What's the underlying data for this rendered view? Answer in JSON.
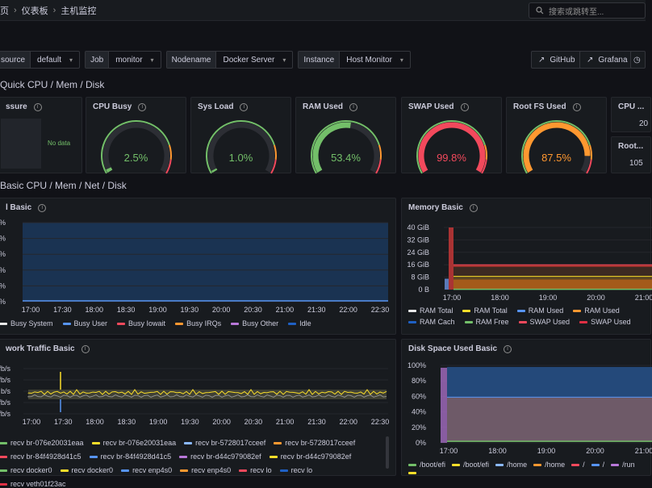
{
  "breadcrumb": {
    "home": "页",
    "dashboards": "仪表板",
    "current": "主机监控"
  },
  "search": {
    "placeholder": "搜索或跳转至..."
  },
  "filters": [
    {
      "label": "source",
      "value": "default"
    },
    {
      "label": "Job",
      "value": "monitor"
    },
    {
      "label": "Nodename",
      "value": "Docker Server"
    },
    {
      "label": "Instance",
      "value": "Host Monitor"
    }
  ],
  "links": {
    "github": "GitHub",
    "grafana": "Grafana"
  },
  "rows": {
    "quick": "Quick CPU / Mem / Disk",
    "basic": "Basic CPU / Mem / Net / Disk"
  },
  "quick_panels": {
    "pressure": {
      "title": "ssure",
      "nodata": "No data"
    },
    "gauges": [
      {
        "title": "CPU Busy",
        "value": "2.5%",
        "fraction": 0.025,
        "color": "#73bf69"
      },
      {
        "title": "Sys Load",
        "value": "1.0%",
        "fraction": 0.01,
        "color": "#73bf69"
      },
      {
        "title": "RAM Used",
        "value": "53.4%",
        "fraction": 0.534,
        "color": "#73bf69"
      },
      {
        "title": "SWAP Used",
        "value": "99.8%",
        "fraction": 0.998,
        "color": "#f2495c"
      },
      {
        "title": "Root FS Used",
        "value": "87.5%",
        "fraction": 0.875,
        "color": "#ff9830"
      }
    ],
    "stats": [
      {
        "title": "CPU ...",
        "value": "20"
      },
      {
        "title": "Root...",
        "value": "105"
      }
    ]
  },
  "cpu_panel": {
    "title": "l Basic",
    "y_ticks": [
      "%",
      "%",
      "%",
      "%",
      "%",
      "%"
    ],
    "x_ticks": [
      "17:00",
      "17:30",
      "18:00",
      "18:30",
      "19:00",
      "19:30",
      "20:00",
      "20:30",
      "21:00",
      "21:30",
      "22:00",
      "22:30"
    ],
    "legend": [
      {
        "name": "Busy System",
        "color": "#e8e8e8"
      },
      {
        "name": "Busy User",
        "color": "#5794f2"
      },
      {
        "name": "Busy Iowait",
        "color": "#f2495c"
      },
      {
        "name": "Busy IRQs",
        "color": "#ff9830"
      },
      {
        "name": "Busy Other",
        "color": "#b877d9"
      },
      {
        "name": "Idle",
        "color": "#1f60c4"
      }
    ]
  },
  "memory_panel": {
    "title": "Memory Basic",
    "y_ticks": [
      "40 GiB",
      "32 GiB",
      "24 GiB",
      "16 GiB",
      "8 GiB",
      "0 B"
    ],
    "x_ticks": [
      "17:00",
      "18:00",
      "19:00",
      "20:00",
      "21:00"
    ],
    "legend": [
      {
        "name": "RAM Total",
        "color": "#e8e8e8"
      },
      {
        "name": "RAM Total",
        "color": "#fade2a"
      },
      {
        "name": "RAM Used",
        "color": "#5794f2"
      },
      {
        "name": "RAM Used",
        "color": "#ff9830"
      },
      {
        "name": "RAM Cach",
        "color": "#1f60c4"
      },
      {
        "name": "RAM Free",
        "color": "#73bf69"
      },
      {
        "name": "SWAP Used",
        "color": "#f2495c"
      },
      {
        "name": "SWAP Used",
        "color": "#e02f44"
      }
    ]
  },
  "network_panel": {
    "title": "work Traffic Basic",
    "y_ticks": [
      "fb/s",
      "fb/s",
      "b/s",
      "fb/s",
      "fb/s"
    ],
    "x_ticks": [
      "17:00",
      "17:30",
      "18:00",
      "18:30",
      "19:00",
      "19:30",
      "20:00",
      "20:30",
      "21:00",
      "21:30",
      "22:00",
      "22:30"
    ],
    "legend": [
      {
        "name": "recv br-076e20031eaa",
        "color": "#73bf69"
      },
      {
        "name": "recv br-076e20031eaa",
        "color": "#fade2a"
      },
      {
        "name": "recv br-5728017cceef",
        "color": "#8ab8ff"
      },
      {
        "name": "recv br-5728017cceef",
        "color": "#ff9830"
      },
      {
        "name": "recv br-84f4928d41c5",
        "color": "#f2495c"
      },
      {
        "name": "recv br-84f4928d41c5",
        "color": "#5794f2"
      },
      {
        "name": "recv br-d44c979082ef",
        "color": "#b877d9"
      },
      {
        "name": "recv br-d44c979082ef",
        "color": "#fade2a"
      },
      {
        "name": "recv docker0",
        "color": "#73bf69"
      },
      {
        "name": "recv docker0",
        "color": "#fade2a"
      },
      {
        "name": "recv enp4s0",
        "color": "#5794f2"
      },
      {
        "name": "recv enp4s0",
        "color": "#ff9830"
      },
      {
        "name": "recv lo",
        "color": "#f2495c"
      },
      {
        "name": "recv lo",
        "color": "#1f60c4"
      },
      {
        "name": "recv veth01f23ac",
        "color": "#e02f44"
      }
    ]
  },
  "disk_panel": {
    "title": "Disk Space Used Basic",
    "y_ticks": [
      "100%",
      "80%",
      "60%",
      "40%",
      "20%",
      "0%"
    ],
    "x_ticks": [
      "17:00",
      "18:00",
      "19:00",
      "20:00",
      "21:00"
    ],
    "legend": [
      {
        "name": "/boot/efi",
        "color": "#73bf69"
      },
      {
        "name": "/boot/efi",
        "color": "#fade2a"
      },
      {
        "name": "/home",
        "color": "#8ab8ff"
      },
      {
        "name": "/home",
        "color": "#ff9830"
      },
      {
        "name": "/",
        "color": "#f2495c"
      },
      {
        "name": "/",
        "color": "#5794f2"
      },
      {
        "name": "/run",
        "color": "#b877d9"
      },
      {
        "name": "",
        "color": "#fade2a"
      }
    ]
  }
}
